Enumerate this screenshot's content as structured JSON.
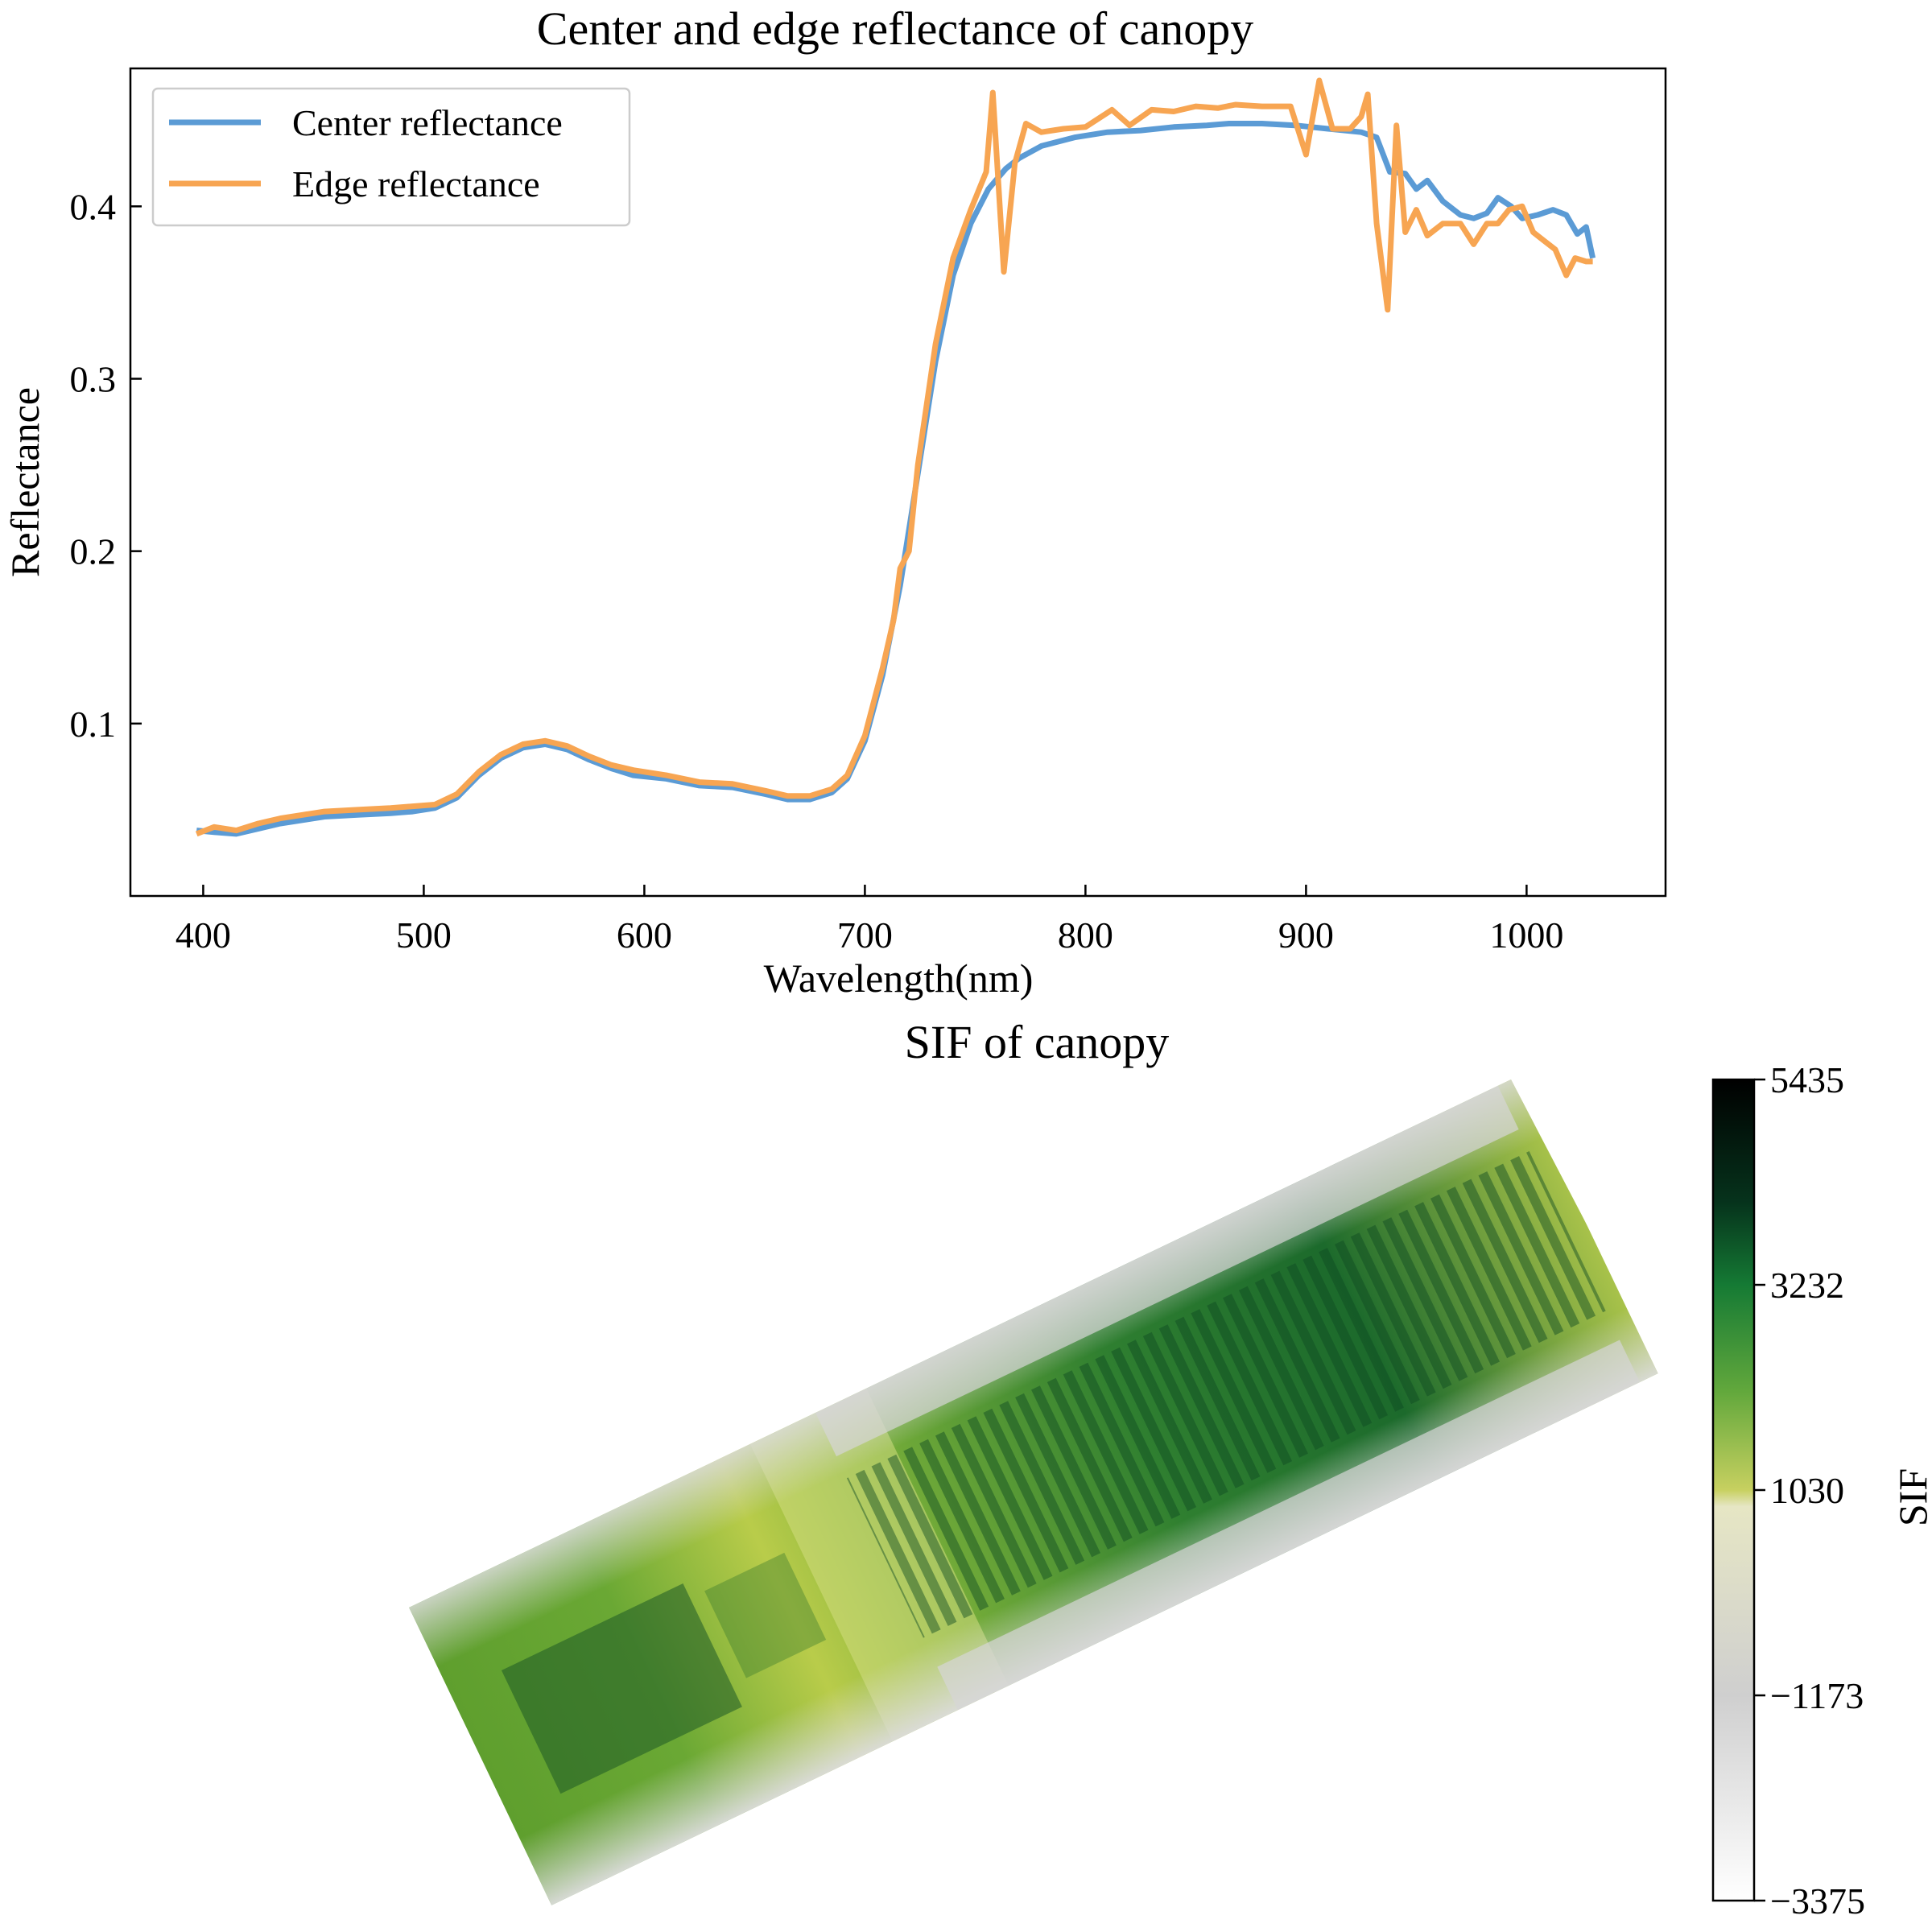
{
  "chart_data": [
    {
      "type": "line",
      "title": "Center and edge reflectance of canopy",
      "xlabel": "Wavelength(nm)",
      "ylabel": "Reflectance",
      "xlim": [
        367,
        1063
      ],
      "ylim": [
        0.0,
        0.48
      ],
      "xticks": [
        400,
        500,
        600,
        700,
        800,
        900,
        1000
      ],
      "yticks": [
        0.1,
        0.2,
        0.3,
        0.4
      ],
      "legend_position": "upper-left",
      "series": [
        {
          "name": "Center reflectance",
          "color": "#5b9bd5",
          "points": [
            [
              397,
              0.038
            ],
            [
              405,
              0.037
            ],
            [
              415,
              0.036
            ],
            [
              425,
              0.039
            ],
            [
              435,
              0.042
            ],
            [
              445,
              0.044
            ],
            [
              455,
              0.046
            ],
            [
              470,
              0.047
            ],
            [
              485,
              0.048
            ],
            [
              495,
              0.049
            ],
            [
              505,
              0.051
            ],
            [
              515,
              0.057
            ],
            [
              525,
              0.07
            ],
            [
              535,
              0.08
            ],
            [
              545,
              0.086
            ],
            [
              555,
              0.088
            ],
            [
              565,
              0.085
            ],
            [
              575,
              0.079
            ],
            [
              585,
              0.074
            ],
            [
              595,
              0.07
            ],
            [
              610,
              0.068
            ],
            [
              625,
              0.064
            ],
            [
              640,
              0.063
            ],
            [
              655,
              0.059
            ],
            [
              665,
              0.056
            ],
            [
              675,
              0.056
            ],
            [
              685,
              0.06
            ],
            [
              692,
              0.068
            ],
            [
              700,
              0.09
            ],
            [
              708,
              0.128
            ],
            [
              716,
              0.18
            ],
            [
              724,
              0.245
            ],
            [
              732,
              0.31
            ],
            [
              740,
              0.36
            ],
            [
              748,
              0.39
            ],
            [
              756,
              0.41
            ],
            [
              764,
              0.422
            ],
            [
              770,
              0.428
            ],
            [
              780,
              0.435
            ],
            [
              795,
              0.44
            ],
            [
              810,
              0.443
            ],
            [
              825,
              0.444
            ],
            [
              840,
              0.446
            ],
            [
              855,
              0.447
            ],
            [
              865,
              0.448
            ],
            [
              880,
              0.448
            ],
            [
              895,
              0.447
            ],
            [
              910,
              0.445
            ],
            [
              925,
              0.443
            ],
            [
              932,
              0.44
            ],
            [
              938,
              0.42
            ],
            [
              945,
              0.419
            ],
            [
              950,
              0.41
            ],
            [
              955,
              0.415
            ],
            [
              962,
              0.403
            ],
            [
              970,
              0.395
            ],
            [
              976,
              0.393
            ],
            [
              982,
              0.396
            ],
            [
              987,
              0.405
            ],
            [
              993,
              0.4
            ],
            [
              998,
              0.393
            ],
            [
              1005,
              0.395
            ],
            [
              1012,
              0.398
            ],
            [
              1018,
              0.395
            ],
            [
              1023,
              0.384
            ],
            [
              1027,
              0.388
            ],
            [
              1030,
              0.37
            ]
          ]
        },
        {
          "name": "Edge reflectance",
          "color": "#f7a552",
          "points": [
            [
              397,
              0.036
            ],
            [
              405,
              0.04
            ],
            [
              415,
              0.038
            ],
            [
              425,
              0.042
            ],
            [
              435,
              0.045
            ],
            [
              445,
              0.047
            ],
            [
              455,
              0.049
            ],
            [
              470,
              0.05
            ],
            [
              485,
              0.051
            ],
            [
              495,
              0.052
            ],
            [
              505,
              0.053
            ],
            [
              515,
              0.059
            ],
            [
              525,
              0.072
            ],
            [
              535,
              0.082
            ],
            [
              545,
              0.088
            ],
            [
              555,
              0.09
            ],
            [
              565,
              0.087
            ],
            [
              575,
              0.081
            ],
            [
              585,
              0.076
            ],
            [
              595,
              0.073
            ],
            [
              610,
              0.07
            ],
            [
              625,
              0.066
            ],
            [
              640,
              0.065
            ],
            [
              655,
              0.061
            ],
            [
              665,
              0.058
            ],
            [
              675,
              0.058
            ],
            [
              685,
              0.062
            ],
            [
              692,
              0.07
            ],
            [
              700,
              0.093
            ],
            [
              708,
              0.132
            ],
            [
              713,
              0.16
            ],
            [
              716,
              0.19
            ],
            [
              720,
              0.2
            ],
            [
              724,
              0.25
            ],
            [
              732,
              0.32
            ],
            [
              740,
              0.37
            ],
            [
              748,
              0.398
            ],
            [
              755,
              0.42
            ],
            [
              758,
              0.466
            ],
            [
              763,
              0.362
            ],
            [
              768,
              0.425
            ],
            [
              773,
              0.448
            ],
            [
              780,
              0.443
            ],
            [
              790,
              0.445
            ],
            [
              800,
              0.446
            ],
            [
              812,
              0.456
            ],
            [
              820,
              0.447
            ],
            [
              830,
              0.456
            ],
            [
              840,
              0.455
            ],
            [
              850,
              0.458
            ],
            [
              860,
              0.457
            ],
            [
              868,
              0.459
            ],
            [
              880,
              0.458
            ],
            [
              893,
              0.458
            ],
            [
              900,
              0.43
            ],
            [
              906,
              0.473
            ],
            [
              912,
              0.445
            ],
            [
              920,
              0.445
            ],
            [
              925,
              0.452
            ],
            [
              928,
              0.465
            ],
            [
              932,
              0.39
            ],
            [
              937,
              0.34
            ],
            [
              941,
              0.447
            ],
            [
              945,
              0.385
            ],
            [
              950,
              0.398
            ],
            [
              955,
              0.383
            ],
            [
              962,
              0.39
            ],
            [
              970,
              0.39
            ],
            [
              976,
              0.378
            ],
            [
              982,
              0.39
            ],
            [
              987,
              0.39
            ],
            [
              992,
              0.398
            ],
            [
              998,
              0.4
            ],
            [
              1003,
              0.385
            ],
            [
              1008,
              0.38
            ],
            [
              1013,
              0.375
            ],
            [
              1018,
              0.36
            ],
            [
              1022,
              0.37
            ],
            [
              1027,
              0.368
            ],
            [
              1030,
              0.368
            ]
          ]
        }
      ]
    },
    {
      "type": "heatmap",
      "title": "SIF of canopy",
      "colorbar_label": "SIF",
      "colorbar_ticks": [
        "5435",
        "3232",
        "1030",
        "−1173",
        "−3375"
      ],
      "colorbar_range": [
        -3375,
        5435
      ],
      "colormap_stops": [
        "#ffffff",
        "#c8c8c8",
        "#e8e8b0",
        "#a6c23a",
        "#3c9a3c",
        "#0b5a2a",
        "#000000"
      ]
    }
  ]
}
